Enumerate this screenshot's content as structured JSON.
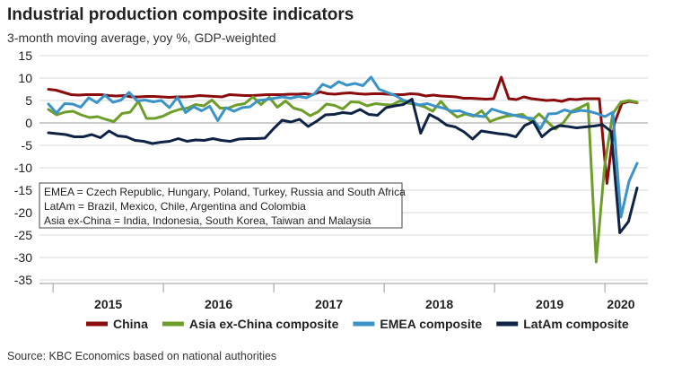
{
  "title": "Industrial production composite indicators",
  "subtitle": "3-month moving average, yoy %, GDP-weighted",
  "source": "Source: KBC Economics based on national authorities",
  "note_lines": [
    "EMEA = Czech Republic, Hungary, Poland, Turkey, Russia and South Africa",
    "LatAm = Brazil, Mexico, Chile, Argentina and Colombia",
    "Asia ex-China = India, Indonesia, South Korea, Taiwan and Malaysia"
  ],
  "chart_data": {
    "type": "line",
    "ylim": [
      -35,
      15
    ],
    "yticks": [
      15,
      10,
      5,
      0,
      -5,
      -10,
      -15,
      -20,
      -25,
      -30,
      -35
    ],
    "year_labels": [
      "2015",
      "2016",
      "2017",
      "2018",
      "2019",
      "2020"
    ],
    "x_start": "2014-12",
    "x_end": "2020-04",
    "grid": true,
    "legend_position": "bottom",
    "series": [
      {
        "name": "China",
        "color": "#8b0c0c",
        "values": [
          7.5,
          7.3,
          6.8,
          6.3,
          6.2,
          6.3,
          6.3,
          6.3,
          6.1,
          6.0,
          6.1,
          5.8,
          5.8,
          5.9,
          5.9,
          5.8,
          5.7,
          5.8,
          5.8,
          5.9,
          6.1,
          6.0,
          5.9,
          5.8,
          6.3,
          6.2,
          6.1,
          6.1,
          6.2,
          6.3,
          6.3,
          6.3,
          6.4,
          6.4,
          6.5,
          6.3,
          6.9,
          6.5,
          6.4,
          6.6,
          6.7,
          6.5,
          6.4,
          6.5,
          6.5,
          6.4,
          6.3,
          6.3,
          6.5,
          6.4,
          6.0,
          6.2,
          6.0,
          5.9,
          5.8,
          5.5,
          5.5,
          5.4,
          5.3,
          5.4,
          10.2,
          5.4,
          5.2,
          5.8,
          5.4,
          5.2,
          5.0,
          5.1,
          4.8,
          5.3,
          5.2,
          5.4,
          5.4,
          5.4,
          -13.5,
          0.0,
          4.4,
          4.8,
          4.5
        ]
      },
      {
        "name": "Asia ex-China composite",
        "color": "#6e9e2a",
        "values": [
          3.0,
          1.8,
          2.4,
          2.6,
          1.8,
          1.2,
          1.4,
          0.8,
          0.3,
          2.1,
          2.4,
          4.8,
          1.0,
          1.0,
          1.5,
          2.4,
          3.0,
          3.3,
          4.1,
          3.8,
          5.1,
          3.3,
          3.3,
          4.0,
          4.3,
          5.8,
          4.1,
          5.7,
          3.5,
          4.9,
          3.3,
          2.8,
          1.6,
          2.5,
          4.2,
          3.9,
          3.1,
          4.7,
          4.6,
          3.8,
          4.3,
          4.1,
          4.0,
          4.9,
          4.4,
          4.1,
          3.6,
          2.6,
          4.8,
          2.7,
          1.3,
          2.0,
          1.5,
          2.7,
          0.3,
          1.0,
          1.5,
          1.7,
          1.9,
          0.4,
          2.0,
          0.3,
          -1.4,
          0.1,
          2.6,
          3.4,
          4.3,
          -31.0,
          -10.0,
          2.0,
          4.6,
          5.0,
          4.6
        ]
      },
      {
        "name": "EMEA composite",
        "color": "#3b93c7",
        "values": [
          4.2,
          2.2,
          4.3,
          4.2,
          3.5,
          5.6,
          4.5,
          6.2,
          4.6,
          5.1,
          6.8,
          4.9,
          5.1,
          4.7,
          5.0,
          3.4,
          5.7,
          2.3,
          3.6,
          2.7,
          3.7,
          0.5,
          3.4,
          2.6,
          3.4,
          3.6,
          5.0,
          5.2,
          5.5,
          5.8,
          5.5,
          5.9,
          5.6,
          6.5,
          8.6,
          7.9,
          9.2,
          8.4,
          8.8,
          8.3,
          10.2,
          7.5,
          6.8,
          6.1,
          5.1,
          4.5,
          4.0,
          4.3,
          3.7,
          3.3,
          2.6,
          2.7,
          2.0,
          1.6,
          1.4,
          3.1,
          2.5,
          2.0,
          1.6,
          1.2,
          1.0,
          -1.3,
          2.0,
          2.1,
          2.9,
          2.4,
          2.8,
          2.6,
          2.1,
          1.4,
          2.4,
          -21.0,
          -13.0,
          -9.0
        ]
      },
      {
        "name": "LatAm composite",
        "color": "#0f2344",
        "values": [
          -2.2,
          -2.4,
          -2.6,
          -3.1,
          -3.1,
          -2.6,
          -3.3,
          -1.8,
          -2.9,
          -3.1,
          -3.9,
          -4.1,
          -4.6,
          -4.3,
          -4.1,
          -3.5,
          -4.1,
          -3.8,
          -3.9,
          -3.5,
          -3.9,
          -4.1,
          -3.6,
          -3.5,
          -3.5,
          -3.4,
          -1.3,
          0.6,
          0.2,
          0.8,
          -0.8,
          0.4,
          1.8,
          1.9,
          2.3,
          2.1,
          3.0,
          1.9,
          1.7,
          3.4,
          3.8,
          4.1,
          5.3,
          -2.3,
          1.9,
          0.9,
          -0.5,
          -0.9,
          -2.0,
          -3.6,
          -1.8,
          -2.1,
          -2.4,
          -2.6,
          -3.1,
          -0.6,
          0.3,
          -3.1,
          -1.5,
          -0.6,
          -0.8,
          -1.1,
          -0.9,
          -0.7,
          -0.4,
          -1.9,
          -24.5,
          -22.0,
          -14.5
        ]
      }
    ]
  }
}
